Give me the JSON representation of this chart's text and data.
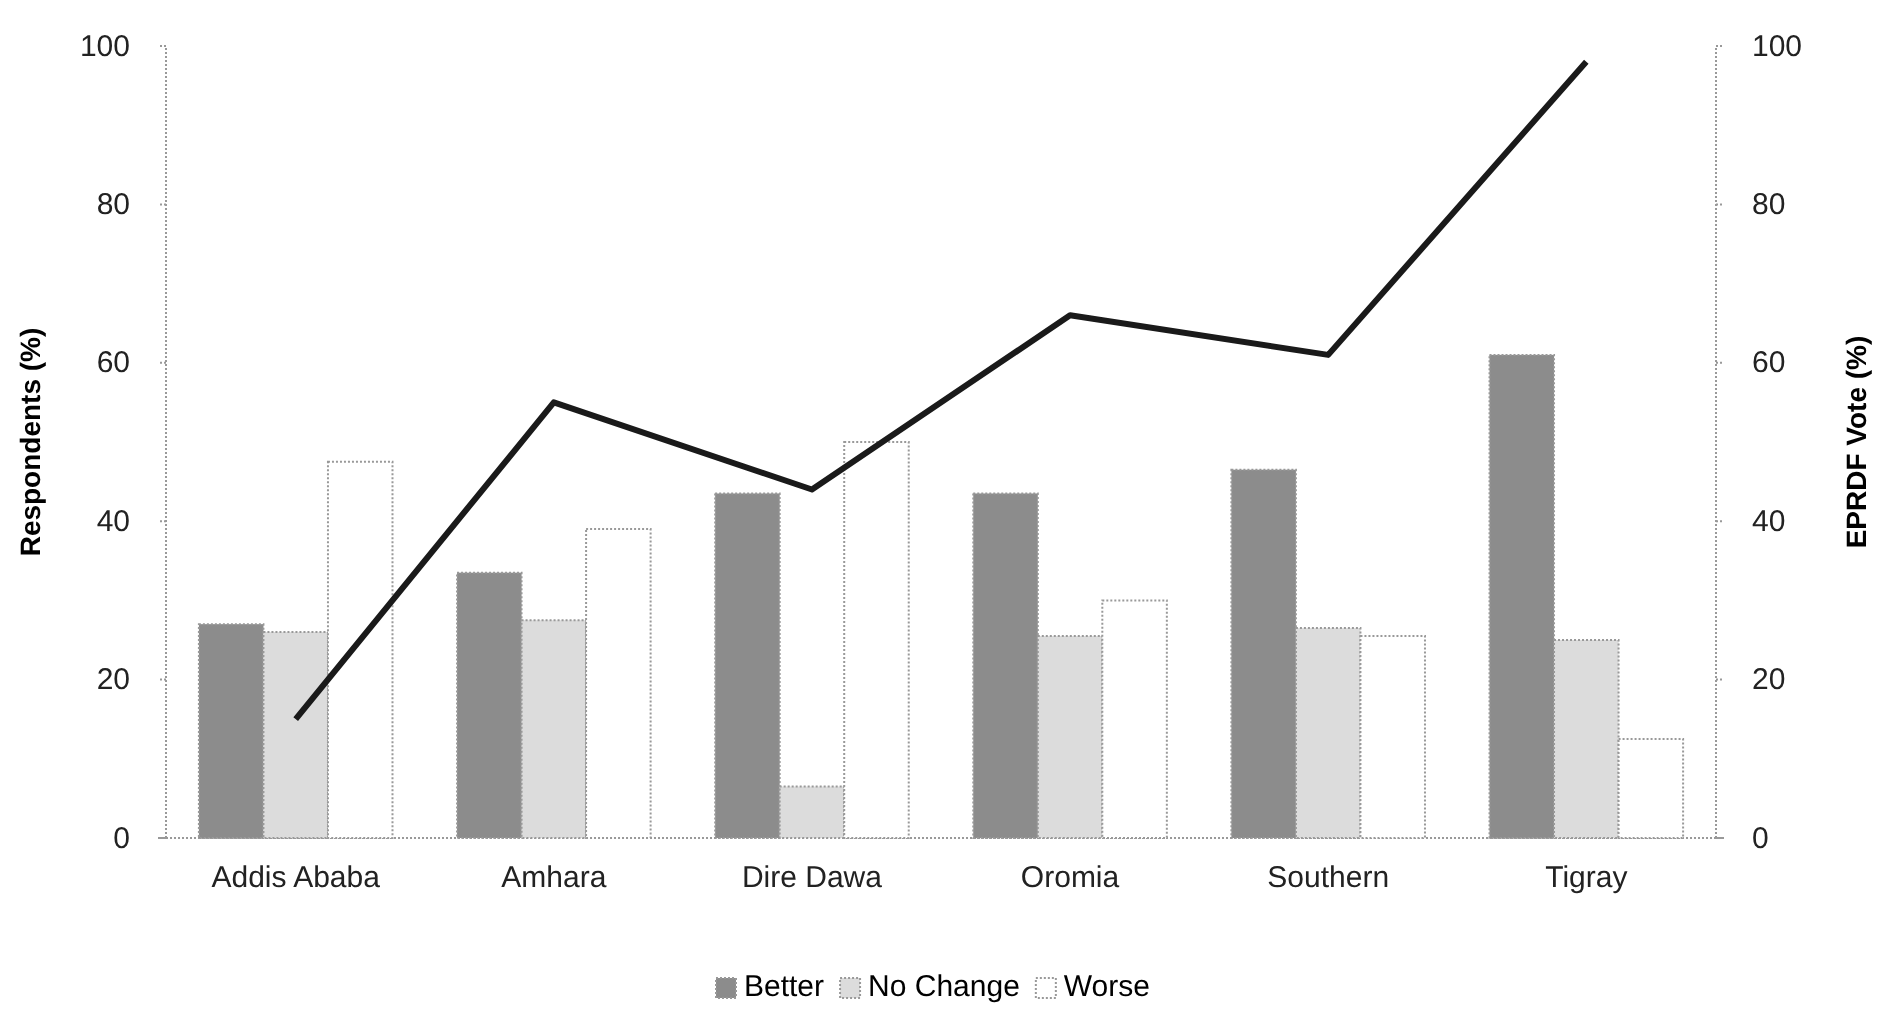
{
  "chart_data": {
    "type": "bar",
    "categories": [
      "Addis Ababa",
      "Amhara",
      "Dire Dawa",
      "Oromia",
      "Southern",
      "Tigray"
    ],
    "ylabel": "Respondents (%)",
    "y2label": "EPRDF Vote (%)",
    "ylim": [
      0,
      100
    ],
    "yticks": [
      0,
      20,
      40,
      60,
      80,
      100
    ],
    "y2lim": [
      0,
      100
    ],
    "y2ticks": [
      0,
      20,
      40,
      60,
      80,
      100
    ],
    "legend": "bottom",
    "grid": false,
    "series": [
      {
        "name": "Better",
        "color": "#8c8c8c",
        "values": [
          27,
          33.5,
          43.5,
          43.5,
          46.5,
          61
        ]
      },
      {
        "name": "No Change",
        "color": "#dcdcdc",
        "values": [
          26,
          27.5,
          6.5,
          25.5,
          26.5,
          25
        ]
      },
      {
        "name": "Worse",
        "color": "#ffffff",
        "values": [
          47.5,
          39,
          50,
          30,
          25.5,
          12.5
        ]
      },
      {
        "type": "line",
        "axis": "y2",
        "color": "#1a1a1a",
        "values": [
          15,
          55,
          44,
          66,
          61,
          98
        ]
      }
    ]
  }
}
